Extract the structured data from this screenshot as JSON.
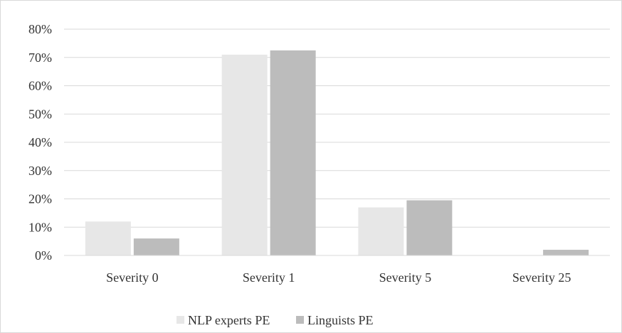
{
  "chart_data": {
    "type": "bar",
    "categories": [
      "Severity 0",
      "Severity 1",
      "Severity 5",
      "Severity 25"
    ],
    "series": [
      {
        "name": "NLP experts PE",
        "values": [
          12,
          71,
          17,
          0
        ],
        "color": "#e7e7e7"
      },
      {
        "name": "Linguists PE",
        "values": [
          6,
          72.5,
          19.5,
          2
        ],
        "color": "#bcbcbc"
      }
    ],
    "ylim": [
      0,
      80
    ],
    "yticks": [
      0,
      10,
      20,
      30,
      40,
      50,
      60,
      70,
      80
    ],
    "ytick_labels": [
      "0%",
      "10%",
      "20%",
      "30%",
      "40%",
      "50%",
      "60%",
      "70%",
      "80%"
    ],
    "grid": true,
    "gridline_color": "#d9d9d9",
    "legend_position": "bottom"
  }
}
